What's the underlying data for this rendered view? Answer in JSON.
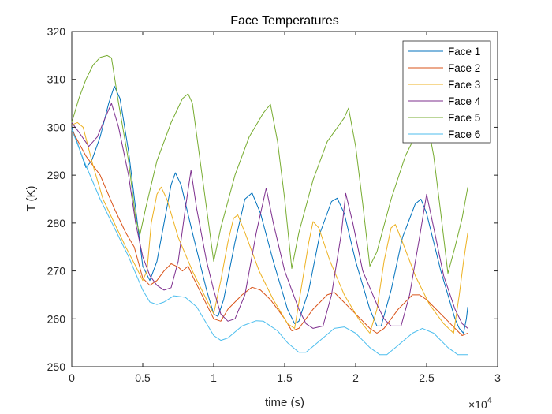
{
  "chart_data": {
    "type": "line",
    "title": "Face Temperatures",
    "xlabel": "time (s)",
    "ylabel": "T (K)",
    "x_exponent_label": "×10",
    "x_exponent": "4",
    "xlim": [
      0,
      3
    ],
    "ylim": [
      250,
      320
    ],
    "xticks": [
      0,
      0.5,
      1,
      1.5,
      2,
      2.5,
      3
    ],
    "xtick_labels": [
      "0",
      "0.5",
      "1",
      "1.5",
      "2",
      "2.5",
      "3"
    ],
    "yticks": [
      250,
      260,
      270,
      280,
      290,
      300,
      310,
      320
    ],
    "ytick_labels": [
      "250",
      "260",
      "270",
      "280",
      "290",
      "300",
      "310",
      "320"
    ],
    "legend_position": "top-right",
    "grid": false,
    "series": [
      {
        "name": "Face 1",
        "color": "#0072BD",
        "points": [
          [
            0,
            300
          ],
          [
            0.06,
            295
          ],
          [
            0.1,
            291.6
          ],
          [
            0.14,
            293
          ],
          [
            0.2,
            298
          ],
          [
            0.26,
            305
          ],
          [
            0.3,
            308.6
          ],
          [
            0.34,
            306
          ],
          [
            0.4,
            295
          ],
          [
            0.45,
            283
          ],
          [
            0.5,
            271
          ],
          [
            0.55,
            268
          ],
          [
            0.6,
            272
          ],
          [
            0.65,
            280
          ],
          [
            0.7,
            288
          ],
          [
            0.73,
            290.5
          ],
          [
            0.77,
            288
          ],
          [
            0.85,
            278
          ],
          [
            0.95,
            266
          ],
          [
            1.0,
            261
          ],
          [
            1.03,
            260.5
          ],
          [
            1.07,
            264
          ],
          [
            1.15,
            276
          ],
          [
            1.22,
            285
          ],
          [
            1.27,
            286.3
          ],
          [
            1.33,
            282
          ],
          [
            1.42,
            272
          ],
          [
            1.52,
            262
          ],
          [
            1.57,
            259
          ],
          [
            1.6,
            259.5
          ],
          [
            1.67,
            266
          ],
          [
            1.75,
            278
          ],
          [
            1.83,
            284.5
          ],
          [
            1.87,
            285.2
          ],
          [
            1.92,
            282
          ],
          [
            2.0,
            272
          ],
          [
            2.1,
            262
          ],
          [
            2.15,
            258.5
          ],
          [
            2.18,
            258.5
          ],
          [
            2.25,
            266
          ],
          [
            2.33,
            277
          ],
          [
            2.42,
            284
          ],
          [
            2.46,
            285
          ],
          [
            2.5,
            282
          ],
          [
            2.6,
            270
          ],
          [
            2.7,
            260
          ],
          [
            2.73,
            258
          ],
          [
            2.76,
            257
          ],
          [
            2.78,
            260
          ],
          [
            2.79,
            262.5
          ]
        ]
      },
      {
        "name": "Face 2",
        "color": "#D95319",
        "points": [
          [
            0,
            299.5
          ],
          [
            0.1,
            294
          ],
          [
            0.2,
            290
          ],
          [
            0.3,
            283
          ],
          [
            0.38,
            278
          ],
          [
            0.44,
            275
          ],
          [
            0.5,
            268.5
          ],
          [
            0.55,
            267
          ],
          [
            0.6,
            268
          ],
          [
            0.65,
            270
          ],
          [
            0.7,
            271.5
          ],
          [
            0.75,
            270.8
          ],
          [
            0.78,
            270
          ],
          [
            0.82,
            271
          ],
          [
            0.85,
            269
          ],
          [
            0.95,
            263
          ],
          [
            1.0,
            260
          ],
          [
            1.05,
            259.5
          ],
          [
            1.1,
            262
          ],
          [
            1.2,
            265
          ],
          [
            1.27,
            266.6
          ],
          [
            1.33,
            266
          ],
          [
            1.4,
            264
          ],
          [
            1.5,
            260
          ],
          [
            1.55,
            257.5
          ],
          [
            1.6,
            258
          ],
          [
            1.7,
            262
          ],
          [
            1.8,
            265
          ],
          [
            1.85,
            265.5
          ],
          [
            1.9,
            264
          ],
          [
            2.0,
            261
          ],
          [
            2.1,
            258
          ],
          [
            2.15,
            257
          ],
          [
            2.2,
            258
          ],
          [
            2.3,
            262
          ],
          [
            2.4,
            265
          ],
          [
            2.45,
            265
          ],
          [
            2.5,
            264
          ],
          [
            2.6,
            261
          ],
          [
            2.7,
            258
          ],
          [
            2.75,
            256.5
          ],
          [
            2.79,
            257
          ]
        ]
      },
      {
        "name": "Face 3",
        "color": "#EDB120",
        "points": [
          [
            0,
            300.5
          ],
          [
            0.04,
            301
          ],
          [
            0.08,
            300
          ],
          [
            0.15,
            292
          ],
          [
            0.22,
            285
          ],
          [
            0.3,
            280
          ],
          [
            0.38,
            275
          ],
          [
            0.45,
            271
          ],
          [
            0.5,
            268
          ],
          [
            0.53,
            270
          ],
          [
            0.56,
            280
          ],
          [
            0.6,
            286
          ],
          [
            0.63,
            287.5
          ],
          [
            0.67,
            285
          ],
          [
            0.75,
            277
          ],
          [
            0.85,
            270
          ],
          [
            0.95,
            264
          ],
          [
            1.0,
            261
          ],
          [
            1.05,
            268
          ],
          [
            1.1,
            276
          ],
          [
            1.14,
            281
          ],
          [
            1.17,
            281.7
          ],
          [
            1.22,
            278
          ],
          [
            1.32,
            270
          ],
          [
            1.42,
            264
          ],
          [
            1.52,
            259
          ],
          [
            1.57,
            258
          ],
          [
            1.62,
            267
          ],
          [
            1.67,
            276
          ],
          [
            1.7,
            280.3
          ],
          [
            1.74,
            279
          ],
          [
            1.82,
            272
          ],
          [
            1.92,
            265
          ],
          [
            2.02,
            260
          ],
          [
            2.1,
            257
          ],
          [
            2.15,
            262
          ],
          [
            2.2,
            272
          ],
          [
            2.25,
            279
          ],
          [
            2.28,
            279.7
          ],
          [
            2.33,
            276
          ],
          [
            2.42,
            269
          ],
          [
            2.52,
            263
          ],
          [
            2.62,
            259
          ],
          [
            2.69,
            257
          ],
          [
            2.73,
            265
          ],
          [
            2.76,
            272
          ],
          [
            2.79,
            278
          ]
        ]
      },
      {
        "name": "Face 4",
        "color": "#7E2F8E",
        "points": [
          [
            0,
            301
          ],
          [
            0.05,
            299
          ],
          [
            0.12,
            296
          ],
          [
            0.18,
            298
          ],
          [
            0.25,
            303
          ],
          [
            0.28,
            305
          ],
          [
            0.33,
            300
          ],
          [
            0.4,
            290
          ],
          [
            0.45,
            280
          ],
          [
            0.5,
            273
          ],
          [
            0.55,
            269
          ],
          [
            0.6,
            267
          ],
          [
            0.65,
            266
          ],
          [
            0.7,
            266.5
          ],
          [
            0.75,
            272
          ],
          [
            0.8,
            283
          ],
          [
            0.84,
            291
          ],
          [
            0.88,
            283
          ],
          [
            0.95,
            272
          ],
          [
            1.0,
            266
          ],
          [
            1.05,
            261
          ],
          [
            1.1,
            259.5
          ],
          [
            1.15,
            260
          ],
          [
            1.22,
            265
          ],
          [
            1.3,
            278
          ],
          [
            1.37,
            287.3
          ],
          [
            1.42,
            280
          ],
          [
            1.5,
            270
          ],
          [
            1.6,
            262
          ],
          [
            1.65,
            259
          ],
          [
            1.7,
            258
          ],
          [
            1.77,
            258.5
          ],
          [
            1.83,
            265
          ],
          [
            1.9,
            278
          ],
          [
            1.93,
            286.2
          ],
          [
            1.98,
            280
          ],
          [
            2.05,
            270
          ],
          [
            2.15,
            263
          ],
          [
            2.2,
            260
          ],
          [
            2.25,
            258.5
          ],
          [
            2.32,
            258.5
          ],
          [
            2.38,
            265
          ],
          [
            2.45,
            277
          ],
          [
            2.5,
            286
          ],
          [
            2.55,
            279
          ],
          [
            2.62,
            269
          ],
          [
            2.7,
            262
          ],
          [
            2.75,
            259
          ],
          [
            2.79,
            258
          ]
        ]
      },
      {
        "name": "Face 5",
        "color": "#77AC30",
        "points": [
          [
            0,
            301
          ],
          [
            0.05,
            306
          ],
          [
            0.1,
            310
          ],
          [
            0.15,
            313
          ],
          [
            0.2,
            314.6
          ],
          [
            0.25,
            315
          ],
          [
            0.28,
            314.5
          ],
          [
            0.33,
            305
          ],
          [
            0.4,
            293
          ],
          [
            0.45,
            281
          ],
          [
            0.48,
            277.5
          ],
          [
            0.52,
            283
          ],
          [
            0.6,
            293
          ],
          [
            0.7,
            301
          ],
          [
            0.78,
            306
          ],
          [
            0.82,
            307
          ],
          [
            0.85,
            305
          ],
          [
            0.9,
            294
          ],
          [
            0.95,
            283
          ],
          [
            1.0,
            272
          ],
          [
            1.05,
            279
          ],
          [
            1.15,
            290
          ],
          [
            1.25,
            298
          ],
          [
            1.35,
            303
          ],
          [
            1.4,
            304.8
          ],
          [
            1.45,
            297
          ],
          [
            1.5,
            285
          ],
          [
            1.55,
            270.5
          ],
          [
            1.6,
            278
          ],
          [
            1.7,
            289
          ],
          [
            1.8,
            297
          ],
          [
            1.92,
            302
          ],
          [
            1.95,
            304
          ],
          [
            2.0,
            296
          ],
          [
            2.05,
            284
          ],
          [
            2.1,
            271
          ],
          [
            2.15,
            274
          ],
          [
            2.25,
            285
          ],
          [
            2.35,
            294
          ],
          [
            2.45,
            300
          ],
          [
            2.5,
            302
          ],
          [
            2.55,
            294
          ],
          [
            2.6,
            282
          ],
          [
            2.65,
            269.5
          ],
          [
            2.7,
            275
          ],
          [
            2.75,
            281
          ],
          [
            2.79,
            287.5
          ]
        ]
      },
      {
        "name": "Face 6",
        "color": "#4DBEEE",
        "points": [
          [
            0,
            299.5
          ],
          [
            0.1,
            292
          ],
          [
            0.2,
            285
          ],
          [
            0.3,
            279
          ],
          [
            0.4,
            273
          ],
          [
            0.5,
            266
          ],
          [
            0.55,
            263.5
          ],
          [
            0.6,
            263
          ],
          [
            0.65,
            263.5
          ],
          [
            0.72,
            264.8
          ],
          [
            0.8,
            264.5
          ],
          [
            0.88,
            262.5
          ],
          [
            0.95,
            259
          ],
          [
            1.0,
            256.5
          ],
          [
            1.05,
            255.5
          ],
          [
            1.1,
            256
          ],
          [
            1.2,
            258.5
          ],
          [
            1.3,
            259.6
          ],
          [
            1.35,
            259.5
          ],
          [
            1.45,
            257.5
          ],
          [
            1.52,
            255
          ],
          [
            1.6,
            253
          ],
          [
            1.65,
            253
          ],
          [
            1.75,
            255.5
          ],
          [
            1.85,
            258
          ],
          [
            1.92,
            258.3
          ],
          [
            2.0,
            257
          ],
          [
            2.1,
            254
          ],
          [
            2.17,
            252.5
          ],
          [
            2.22,
            252.5
          ],
          [
            2.3,
            254.5
          ],
          [
            2.4,
            257
          ],
          [
            2.47,
            258
          ],
          [
            2.55,
            257
          ],
          [
            2.65,
            254
          ],
          [
            2.72,
            252.5
          ],
          [
            2.79,
            252.5
          ]
        ]
      }
    ]
  }
}
